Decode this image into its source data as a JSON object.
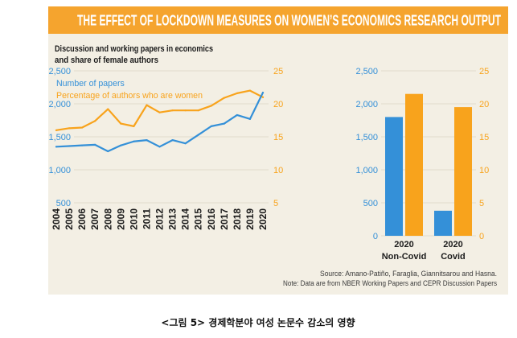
{
  "banner": {
    "title": "THE EFFECT OF LOCKDOWN MEASURES ON WOMEN’S ECONOMICS RESEARCH OUTPUT"
  },
  "colors": {
    "banner": "#f5a42e",
    "panel": "#f3efe4",
    "grid": "#dcd5c6"
  },
  "chart_data": [
    {
      "type": "line",
      "title_lines": [
        "Discussion and working papers in economics",
        "and share of female authors"
      ],
      "categories": [
        "2004",
        "2005",
        "2006",
        "2007",
        "2008",
        "2009",
        "2010",
        "2011",
        "2012",
        "2013",
        "2014",
        "2015",
        "2016",
        "2017",
        "2018",
        "2019",
        "2020"
      ],
      "y_left": {
        "ticks": [
          "2,500",
          "2,000",
          "1,500",
          "1,000",
          "500"
        ],
        "lim": [
          500,
          2500
        ]
      },
      "y_right": {
        "ticks": [
          "25",
          "20",
          "15",
          "10",
          "5"
        ],
        "lim": [
          5,
          25
        ]
      },
      "series": [
        {
          "name": "Number of papers",
          "axis": "left",
          "color": "#3490d8",
          "values": [
            1350,
            1360,
            1370,
            1380,
            1280,
            1370,
            1430,
            1450,
            1350,
            1450,
            1400,
            1530,
            1660,
            1700,
            1830,
            1770,
            2170
          ]
        },
        {
          "name": "Percentage of authors who are women",
          "axis": "right",
          "color": "#f8a31c",
          "values": [
            16.0,
            16.3,
            16.4,
            17.4,
            19.2,
            17.0,
            16.6,
            19.8,
            18.7,
            19.0,
            19.0,
            19.0,
            19.7,
            20.9,
            21.6,
            22.0,
            21.0
          ]
        }
      ],
      "legend": "top-left",
      "grid": true
    },
    {
      "type": "bar",
      "categories": [
        {
          "year": "2020",
          "label": "Non-Covid"
        },
        {
          "year": "2020",
          "label": "Covid"
        }
      ],
      "y_left": {
        "ticks": [
          "2,500",
          "2,000",
          "1,500",
          "1,000",
          "500",
          "0"
        ],
        "lim": [
          0,
          2500
        ]
      },
      "y_right": {
        "ticks": [
          "25",
          "20",
          "15",
          "10",
          "5",
          "0"
        ],
        "lim": [
          0,
          25
        ]
      },
      "series": [
        {
          "axis": "left",
          "color": "#3490d8",
          "values": [
            1800,
            380
          ]
        },
        {
          "axis": "right",
          "color": "#f8a31c",
          "values": [
            21.5,
            19.5
          ]
        }
      ],
      "grid": true
    }
  ],
  "source": "Source: Amano-Patiño, Faraglia, Giannitsarou and Hasna.",
  "note": "Note: Data are from NBER Working Papers and CEPR Discussion Papers",
  "caption": "<그림 5> 경제학분야 여성 논문수 감소의 영향"
}
